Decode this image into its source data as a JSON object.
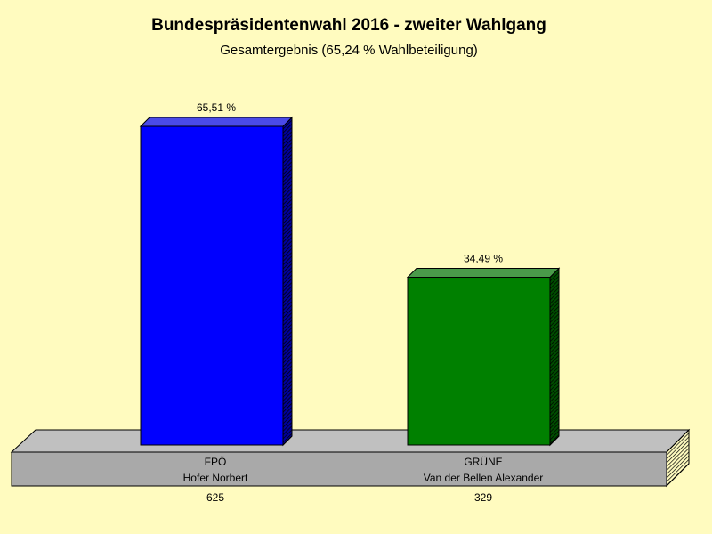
{
  "chart_data": {
    "type": "bar",
    "title": "Bundespräsidentenwahl 2016 - zweiter Wahlgang",
    "subtitle": "Gesamtergebnis (65,24 % Wahlbeteiligung)",
    "ylim": [
      0,
      65.51
    ],
    "grid": false,
    "bars": [
      {
        "party": "FPÖ",
        "candidate": "Hofer Norbert",
        "votes": "625",
        "value": 65.51,
        "value_label": "65,51 %",
        "color": "#0000ff",
        "top_color": "#4a4ae8",
        "side_color": "#00009a"
      },
      {
        "party": "GRÜNE",
        "candidate": "Van der Bellen Alexander",
        "votes": "329",
        "value": 34.49,
        "value_label": "34,49 %",
        "color": "#008000",
        "top_color": "#4a9a4a",
        "side_color": "#004d00"
      }
    ]
  },
  "colors": {
    "background": "#fffbbf",
    "platform_top": "#c0c0c0",
    "platform_front": "#a9a9a9",
    "platform_side": "#8a8a8a"
  }
}
